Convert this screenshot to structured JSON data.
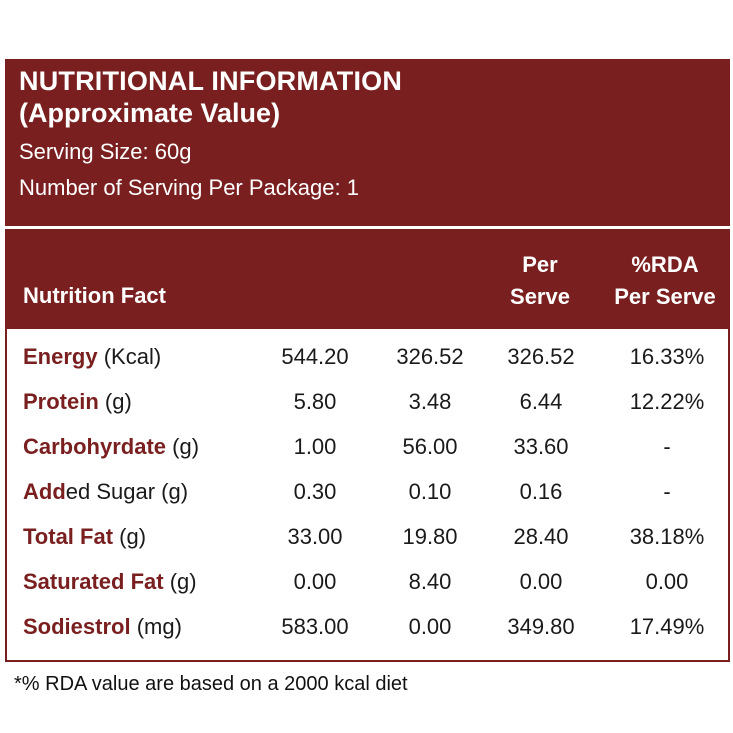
{
  "header": {
    "title": "NUTRITIONAL INFORMATION",
    "subtitle": "(Approximate Value)",
    "serving_size": "Serving Size: 60g",
    "servings_per_package": "Number of Serving Per Package: 1"
  },
  "table": {
    "columns": {
      "fact": "Nutrition Fact",
      "per_serve_line1": "Per",
      "per_serve_line2": "Serve",
      "rda_line1": "%RDA",
      "rda_line2": "Per Serve"
    },
    "rows": [
      {
        "highlight": "Energy",
        "unit": " (Kcal)",
        "v1": "544.20",
        "v2": "326.52",
        "v3": "326.52",
        "v4": "16.33%"
      },
      {
        "highlight": "Protein",
        "unit": " (g)",
        "v1": "5.80",
        "v2": "3.48",
        "v3": "6.44",
        "v4": "12.22%"
      },
      {
        "highlight": "Carbohyrdate",
        "unit": " (g)",
        "v1": "1.00",
        "v2": "56.00",
        "v3": "33.60",
        "v4": "-"
      },
      {
        "highlight": "Add",
        "unit": "ed Sugar (g)",
        "v1": "0.30",
        "v2": "0.10",
        "v3": "0.16",
        "v4": "-"
      },
      {
        "highlight": "Total Fat",
        "unit": " (g)",
        "v1": "33.00",
        "v2": "19.80",
        "v3": "28.40",
        "v4": "38.18%"
      },
      {
        "highlight": "Saturated Fat",
        "unit": " (g)",
        "v1": "0.00",
        "v2": "8.40",
        "v3": "0.00",
        "v4": "0.00"
      },
      {
        "highlight": "Sodiestrol",
        "unit": " (mg)",
        "v1": "583.00",
        "v2": "0.00",
        "v3": "349.80",
        "v4": "17.49%"
      }
    ]
  },
  "footnote": "*% RDA value are based on a 2000 kcal diet",
  "colors": {
    "accent": "#7a1f1f",
    "text": "#1a1a1a",
    "background": "#ffffff"
  }
}
